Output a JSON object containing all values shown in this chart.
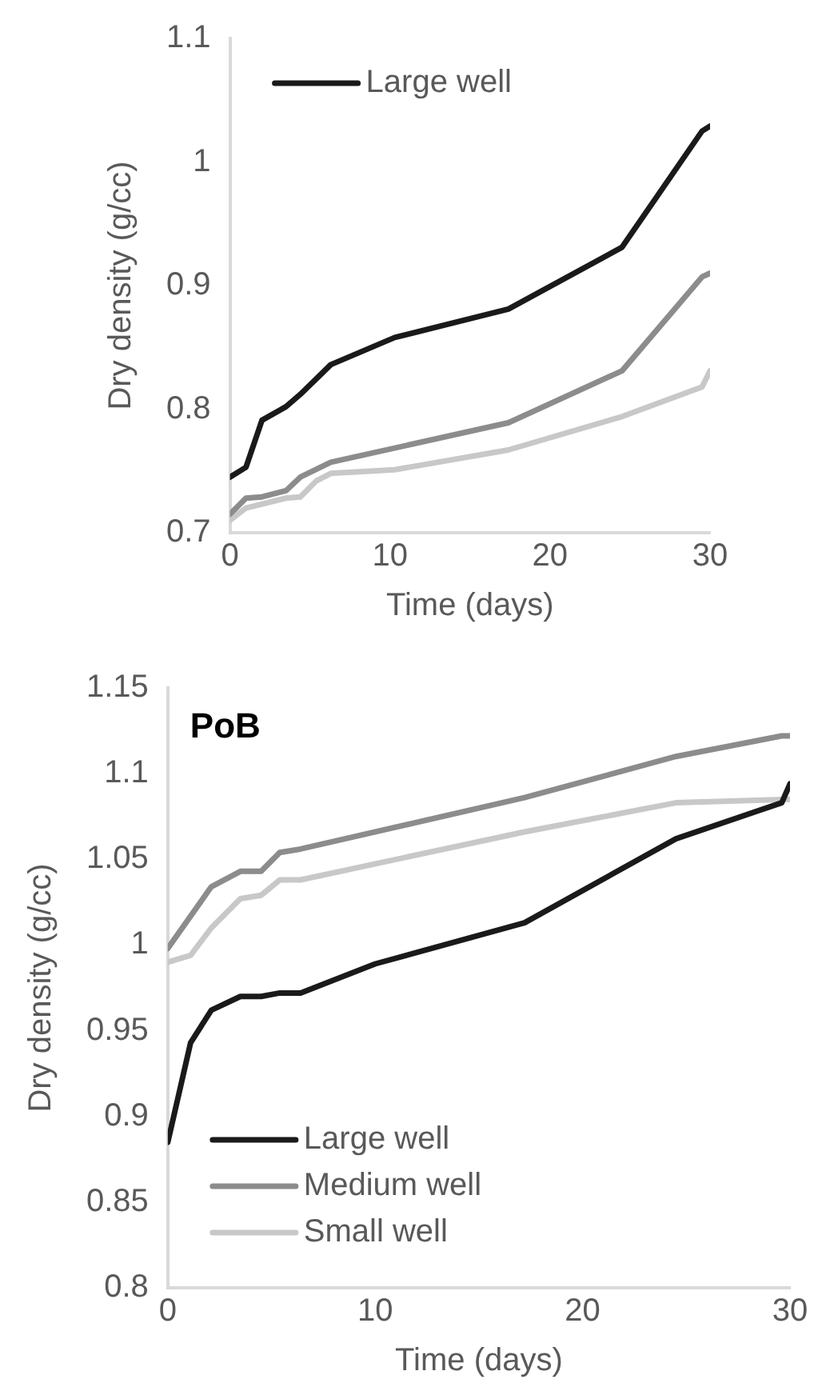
{
  "chart_data": [
    {
      "type": "line",
      "xlabel": "Time (days)",
      "ylabel": "Dry density (g/cc)",
      "xlim": [
        0,
        30
      ],
      "xticks": [
        0,
        10,
        20,
        30
      ],
      "ylim": [
        0.7,
        1.1
      ],
      "yticks": [
        0.7,
        0.8,
        0.9,
        1,
        1.1
      ],
      "grid": false,
      "legend": "top left",
      "marker": "none",
      "line_style": "solid",
      "series": [
        {
          "name": "Large well",
          "color": "#1a1a1a",
          "x": [
            0,
            1,
            2,
            3.5,
            4.4,
            6.3,
            10.3,
            17.4,
            24.5,
            29.5,
            30
          ],
          "values": [
            0.745,
            0.753,
            0.791,
            0.802,
            0.812,
            0.836,
            0.858,
            0.881,
            0.931,
            1.025,
            1.029
          ]
        },
        {
          "color": "#8c8c8c",
          "x": [
            0,
            1,
            2,
            3.5,
            4.4,
            6.3,
            17.4,
            24.5,
            29.5,
            30
          ],
          "values": [
            0.715,
            0.728,
            0.729,
            0.734,
            0.745,
            0.757,
            0.789,
            0.831,
            0.907,
            0.91
          ]
        },
        {
          "color": "#c8c8c8",
          "x": [
            0,
            1,
            3.5,
            4.4,
            5.4,
            6.3,
            10.3,
            17.4,
            24.5,
            29.5,
            30
          ],
          "values": [
            0.71,
            0.72,
            0.728,
            0.729,
            0.742,
            0.748,
            0.751,
            0.767,
            0.794,
            0.818,
            0.831
          ]
        }
      ]
    },
    {
      "type": "line",
      "title": "PoB",
      "xlabel": "Time (days)",
      "ylabel": "Dry density (g/cc)",
      "xlim": [
        0,
        30
      ],
      "xticks": [
        0,
        10,
        20,
        30
      ],
      "ylim": [
        0.8,
        1.15
      ],
      "yticks": [
        0.8,
        0.85,
        0.9,
        0.95,
        1,
        1.05,
        1.1,
        1.15
      ],
      "grid": false,
      "legend": "bottom left",
      "marker": "none",
      "line_style": "solid",
      "series": [
        {
          "name": "Large well",
          "color": "#1a1a1a",
          "x": [
            0,
            1.1,
            2.1,
            3.5,
            4.5,
            5.4,
            6.4,
            10,
            17.2,
            24.5,
            29.6,
            30
          ],
          "values": [
            0.885,
            0.943,
            0.962,
            0.97,
            0.97,
            0.972,
            0.972,
            0.989,
            1.013,
            1.062,
            1.083,
            1.094
          ]
        },
        {
          "name": "Medium well",
          "color": "#8c8c8c",
          "x": [
            0,
            2.1,
            3.5,
            4.5,
            5.4,
            6.4,
            17.2,
            24.5,
            29.6,
            30
          ],
          "values": [
            0.998,
            1.034,
            1.043,
            1.043,
            1.054,
            1.056,
            1.086,
            1.11,
            1.122,
            1.122
          ]
        },
        {
          "name": "Small well",
          "color": "#c8c8c8",
          "x": [
            0,
            1.1,
            2.1,
            3.5,
            4.5,
            5.4,
            6.4,
            17.2,
            24.5,
            30
          ],
          "values": [
            0.99,
            0.994,
            1.01,
            1.027,
            1.029,
            1.038,
            1.038,
            1.066,
            1.083,
            1.085
          ]
        }
      ]
    }
  ]
}
